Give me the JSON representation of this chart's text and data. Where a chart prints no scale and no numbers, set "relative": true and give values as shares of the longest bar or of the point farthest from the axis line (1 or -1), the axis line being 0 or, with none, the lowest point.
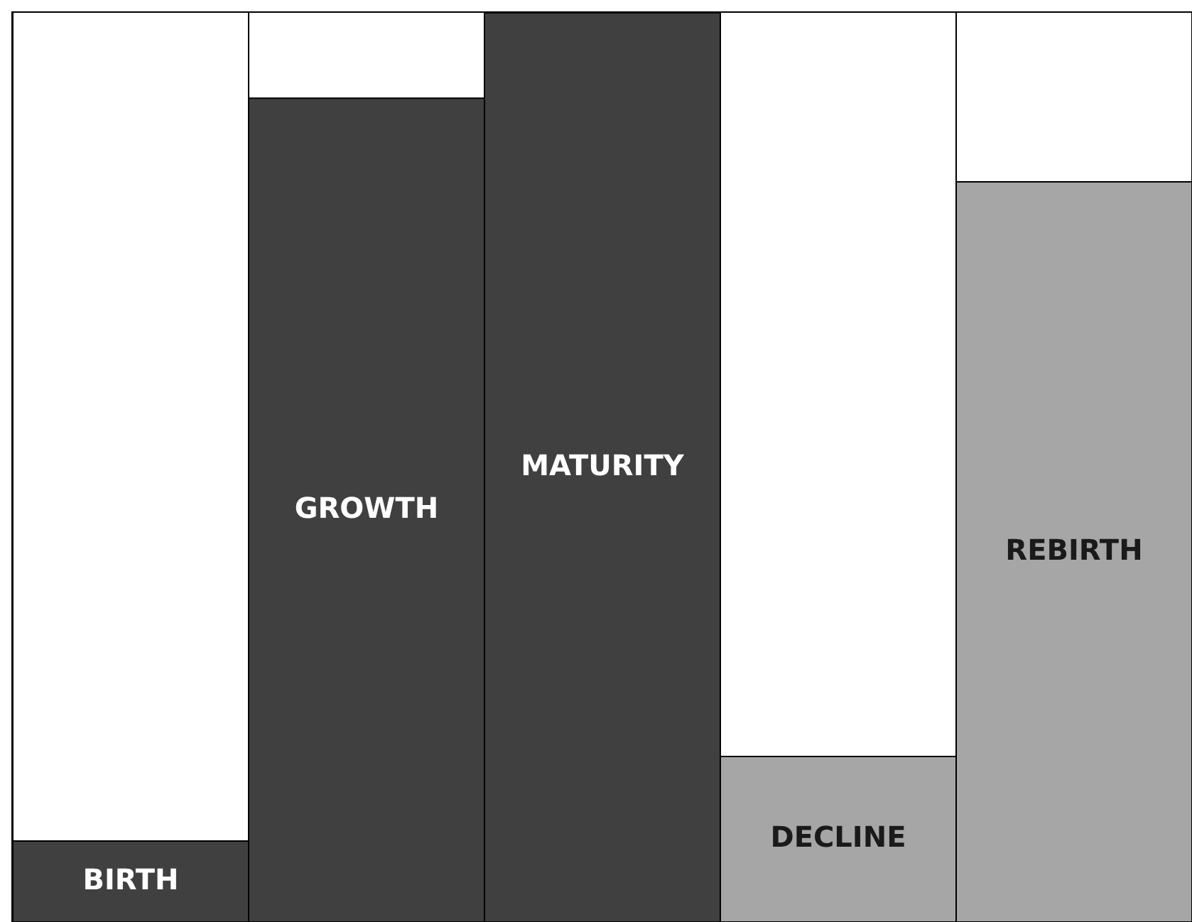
{
  "chart_data": {
    "type": "bar",
    "relative": true,
    "categories": [
      "BIRTH",
      "GROWTH",
      "MATURITY",
      "DECLINE",
      "REBIRTH"
    ],
    "values": [
      0.089,
      0.906,
      1,
      0.182,
      0.814
    ],
    "colors": [
      "#404040",
      "#404040",
      "#404040",
      "#a6a6a6",
      "#a6a6a6"
    ],
    "grid": "x"
  }
}
